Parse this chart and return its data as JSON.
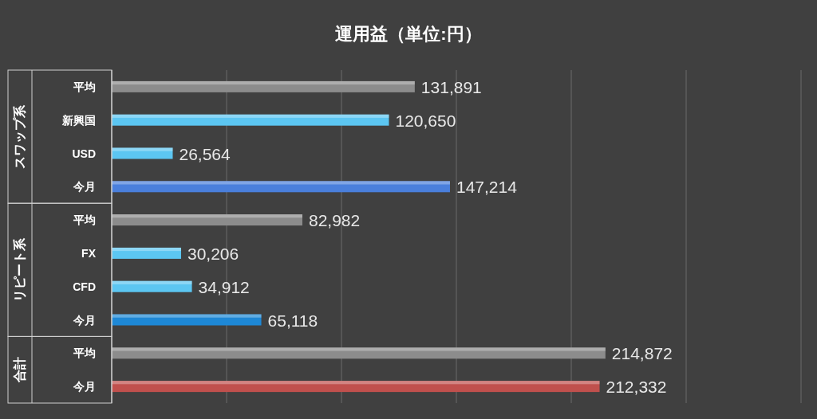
{
  "chart_data": {
    "type": "bar",
    "orientation": "horizontal",
    "title": "運用益（単位:円）",
    "categories": [
      "平均",
      "新興国",
      "USD",
      "今月",
      "平均",
      "FX",
      "CFD",
      "今月",
      "平均",
      "今月"
    ],
    "values": [
      131891,
      120650,
      26564,
      147214,
      82982,
      30206,
      34912,
      65118,
      214872,
      212332
    ],
    "colors": [
      "#8c8c8c",
      "#5cc6f2",
      "#5cc6f2",
      "#4a7fdc",
      "#8c8c8c",
      "#5cc6f2",
      "#5cc6f2",
      "#1e88d6",
      "#8c8c8c",
      "#c0504d"
    ],
    "value_labels": [
      "131,891",
      "120,650",
      "26,564",
      "147,214",
      "82,982",
      "30,206",
      "34,912",
      "65,118",
      "214,872",
      "212,332"
    ],
    "annotations": [
      "スワップ系",
      "リピート系",
      "合計"
    ],
    "xlim": [
      0,
      300000
    ],
    "xticks": [
      {
        "value": 0,
        "label": null
      },
      {
        "value": 50000,
        "label": null
      },
      {
        "value": 100000,
        "label": null
      },
      {
        "value": 150000,
        "label": null
      },
      {
        "value": 200000,
        "label": null
      },
      {
        "value": 250000,
        "label": null
      },
      {
        "value": 300000,
        "label": null
      }
    ],
    "tick_labels": "y",
    "grid": "x"
  }
}
